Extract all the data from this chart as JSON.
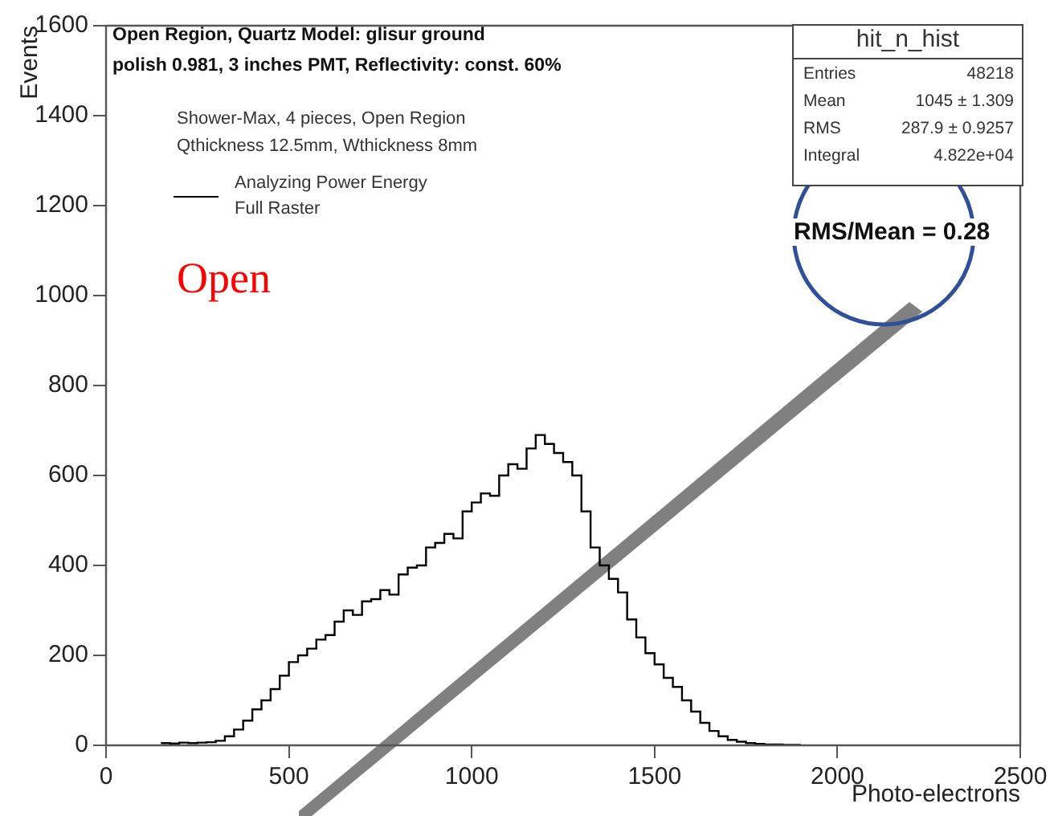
{
  "chart_data": {
    "type": "histogram",
    "title": "Open Region, Quartz Model: glisur ground\npolish 0.981, 3 inches PMT, Reflectivity: const. 60%",
    "xlabel": "Photo-electrons",
    "ylabel": "Events",
    "bins": [
      150,
      175,
      200,
      225,
      250,
      275,
      300,
      325,
      350,
      375,
      400,
      425,
      450,
      475,
      500,
      525,
      550,
      575,
      600,
      625,
      650,
      675,
      700,
      725,
      750,
      775,
      800,
      825,
      850,
      875,
      900,
      925,
      950,
      975,
      1000,
      1025,
      1050,
      1075,
      1100,
      1125,
      1150,
      1175,
      1200,
      1225,
      1250,
      1275,
      1300,
      1325,
      1350,
      1375,
      1400,
      1425,
      1450,
      1475,
      1500,
      1525,
      1550,
      1575,
      1600,
      1625,
      1650,
      1675,
      1700,
      1725,
      1750,
      1775,
      1800,
      1825,
      1850,
      1875,
      1900
    ],
    "series": [
      {
        "name": "Analyzing Power Energy Full Raster",
        "color": "#000000",
        "values": [
          5,
          4,
          6,
          5,
          6,
          7,
          10,
          20,
          35,
          55,
          80,
          100,
          125,
          155,
          185,
          200,
          215,
          235,
          245,
          275,
          300,
          290,
          320,
          325,
          345,
          335,
          380,
          395,
          400,
          440,
          450,
          470,
          460,
          520,
          540,
          560,
          555,
          600,
          625,
          615,
          660,
          690,
          670,
          650,
          630,
          600,
          520,
          440,
          400,
          370,
          340,
          280,
          240,
          205,
          180,
          150,
          130,
          100,
          75,
          50,
          32,
          20,
          12,
          8,
          5,
          3,
          2,
          2,
          1,
          1
        ]
      }
    ],
    "xlim": [
      0,
      2500
    ],
    "xticks": [
      0,
      500,
      1000,
      1500,
      2000,
      2500
    ],
    "ylim": [
      0,
      1600
    ],
    "yticks": [
      0,
      200,
      400,
      600,
      800,
      1000,
      1200,
      1400,
      1600
    ],
    "grid": false,
    "legend": "top left",
    "annotations": [
      "Shower-Max, 4 pieces, Open Region",
      "Qthickness 12.5mm, Wthickness 8mm",
      "Open",
      "hit_n_hist",
      "Entries 48218",
      "Mean 1045 ± 1.309",
      "RMS 287.9 ± 0.9257",
      "Integral 4.822e+04",
      "RMS/Mean = 0.28"
    ]
  }
}
